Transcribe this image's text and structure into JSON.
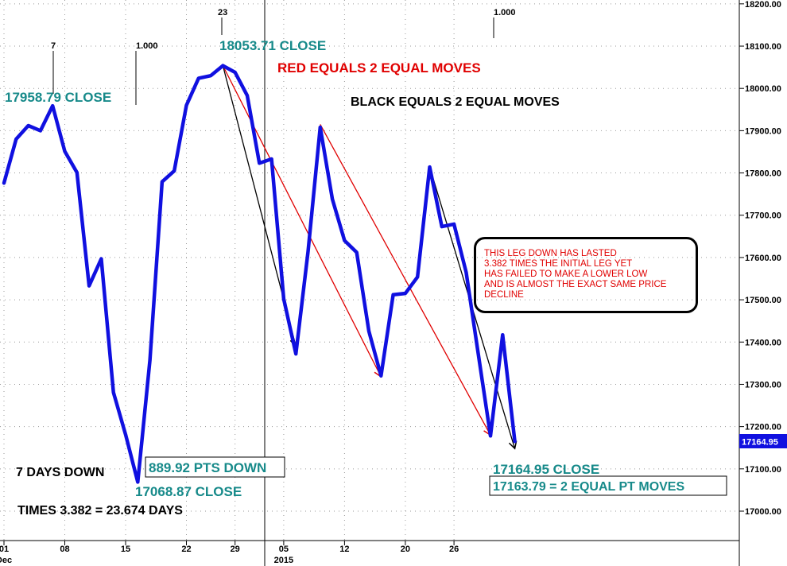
{
  "chart_data": {
    "type": "line",
    "title": "",
    "xlabel": "",
    "ylabel": "",
    "ylim": [
      16930,
      18210
    ],
    "y_ticks": [
      17000,
      17100,
      17200,
      17300,
      17400,
      17500,
      17600,
      17700,
      17800,
      17900,
      18000,
      18100,
      18200
    ],
    "y_tick_labels": [
      "17000.00",
      "17100.00",
      "17200.00",
      "17300.00",
      "17400.00",
      "17500.00",
      "17600.00",
      "17700.00",
      "17800.00",
      "17900.00",
      "18000.00",
      "18100.00",
      "18200.00"
    ],
    "x_ticks": [
      {
        "i": 0,
        "label": "01",
        "sub": "Dec"
      },
      {
        "i": 5,
        "label": "08",
        "sub": ""
      },
      {
        "i": 10,
        "label": "15",
        "sub": ""
      },
      {
        "i": 15,
        "label": "22",
        "sub": ""
      },
      {
        "i": 19,
        "label": "29",
        "sub": ""
      },
      {
        "i": 23,
        "label": "05",
        "sub": "2015"
      },
      {
        "i": 28,
        "label": "12",
        "sub": ""
      },
      {
        "i": 33,
        "label": "20",
        "sub": ""
      },
      {
        "i": 37,
        "label": "26",
        "sub": ""
      }
    ],
    "grid": true,
    "series": [
      {
        "color": "#1010e0",
        "values": [
          17776,
          17880,
          17912,
          17900,
          17958.79,
          17851,
          17801,
          17533,
          17597,
          17281,
          17181,
          17068.87,
          17357,
          17779,
          17805,
          17960,
          18024,
          18030,
          18053.71,
          18038,
          17983,
          17823,
          17833,
          17502,
          17372,
          17614,
          17908,
          17738,
          17640,
          17612,
          17426,
          17320,
          17512,
          17515,
          17554,
          17814,
          17673,
          17679,
          17565,
          17371,
          17178,
          17417,
          17164.95
        ]
      }
    ],
    "last_value_label": "17164.95",
    "annotations": {
      "close_1": "17958.79 CLOSE",
      "close_2": "18053.71 CLOSE",
      "close_3": "17068.87 CLOSE",
      "close_4": "17164.95 CLOSE",
      "pts_down": "889.92 PTS DOWN",
      "equal_moves": "17163.79 = 2 EQUAL PT MOVES",
      "red_legend": "RED EQUALS 2 EQUAL MOVES",
      "black_legend": "BLACK EQUALS 2 EQUAL MOVES",
      "days_down": "7 DAYS DOWN",
      "times": "TIMES 3.382 = 23.674 DAYS",
      "marker_7": "7",
      "marker_23": "23",
      "ratio_1": "1.000",
      "ratio_2": "1.000",
      "note": "THIS LEG DOWN HAS LASTED\n3.382 TIMES THE INITIAL LEG YET\nHAS FAILED TO MAKE A LOWER LOW\nAND IS ALMOST THE EXACT SAME PRICE\nDECLINE"
    },
    "red_lines": [
      {
        "from_i": 18,
        "from_v": 18053.71,
        "to_i": 31,
        "to_v": 17318
      },
      {
        "from_i": 26,
        "from_v": 17915,
        "to_i": 40,
        "to_v": 17180
      }
    ],
    "black_lines": [
      {
        "from_i": 18,
        "from_v": 18053.71,
        "to_i": 24,
        "to_v": 17390
      },
      {
        "from_i": 35,
        "from_v": 17814,
        "to_i": 42,
        "to_v": 17148
      }
    ],
    "colors": {
      "line": "#1010e0",
      "red": "#e00000",
      "teal": "#178a8a",
      "black": "#000000"
    }
  }
}
